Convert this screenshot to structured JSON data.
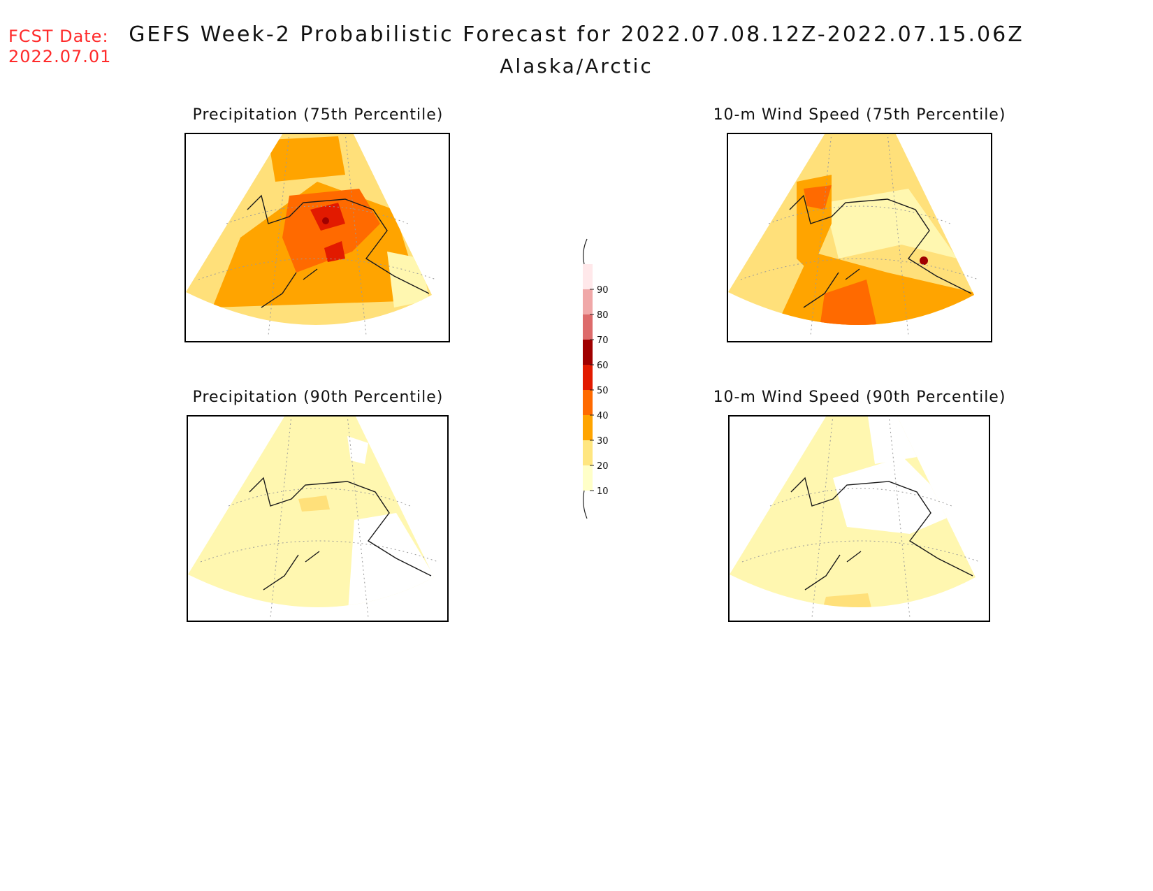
{
  "fcst_date": {
    "label": "FCST Date:",
    "value": "2022.07.01"
  },
  "title": {
    "main": "GEFS Week-2 Probabilistic Forecast for 2022.07.08.12Z-2022.07.15.06Z",
    "region": "Alaska/Arctic"
  },
  "panels": [
    {
      "title": "Precipitation (75th Percentile)"
    },
    {
      "title": "10-m Wind Speed (75th Percentile)"
    },
    {
      "title": "Precipitation (90th Percentile)"
    },
    {
      "title": "10-m Wind Speed (90th Percentile)"
    }
  ],
  "colorbar": {
    "ticks": [
      "10",
      "20",
      "30",
      "40",
      "50",
      "60",
      "70",
      "80",
      "90"
    ],
    "colors": [
      "#ffffc8",
      "#ffe680",
      "#ffa400",
      "#ff6a00",
      "#e21a00",
      "#a00000",
      "#dd6b6b",
      "#f0a8a8",
      "#ffe8ea"
    ]
  },
  "colors": {
    "c10": "#fff7b0",
    "c20": "#ffe07a",
    "c30": "#ffa400",
    "c40": "#ff6a00",
    "c50": "#e21a00",
    "c60": "#a00000",
    "coast": "#1a1a1a",
    "grid": "#9a9a9a",
    "fcst": "#ff2a2a"
  }
}
